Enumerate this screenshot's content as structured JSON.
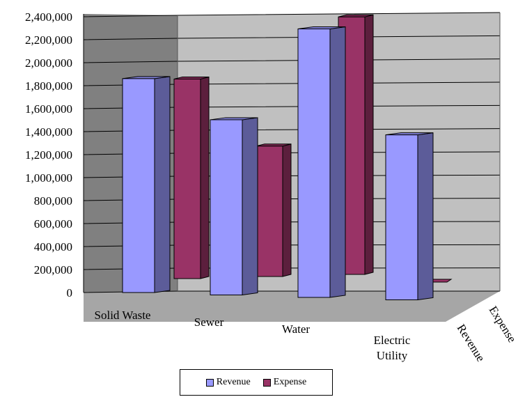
{
  "chart_data": {
    "type": "bar",
    "categories": [
      "Solid Waste",
      "Sewer",
      "Water",
      "Electric Utility"
    ],
    "series": [
      {
        "name": "Revenue",
        "values": [
          1880000,
          1540000,
          2360000,
          1450000
        ],
        "color": "#9999ff"
      },
      {
        "name": "Expense",
        "values": [
          1790000,
          1170000,
          2310000,
          0
        ],
        "color": "#993366"
      }
    ],
    "y_tick_labels": [
      "0",
      "200,000",
      "400,000",
      "600,000",
      "800,000",
      "1,000,000",
      "1,200,000",
      "1,400,000",
      "1,600,000",
      "1,800,000",
      "2,000,000",
      "2,200,000",
      "2,400,000"
    ],
    "ylim": [
      0,
      2400000
    ],
    "depth_axis_labels": [
      "Revenue",
      "Expense"
    ],
    "legend": {
      "position": "bottom",
      "items": [
        "Revenue",
        "Expense"
      ]
    },
    "grid": true,
    "three_d": true
  }
}
